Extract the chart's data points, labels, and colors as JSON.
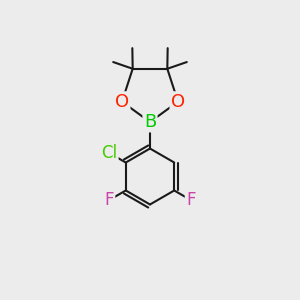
{
  "bg_color": "#ececec",
  "bond_color": "#1a1a1a",
  "bond_width": 1.5,
  "atom_colors": {
    "B": "#00cc00",
    "O": "#ff2200",
    "Cl": "#44cc00",
    "F": "#cc44aa",
    "C": "#1a1a1a"
  },
  "figsize": [
    3.0,
    3.0
  ],
  "dpi": 100
}
